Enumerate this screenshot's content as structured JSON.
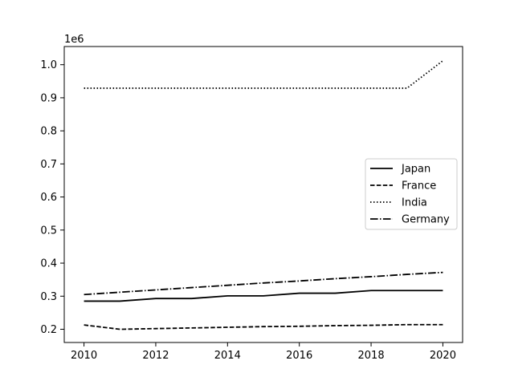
{
  "chart_data": {
    "type": "line",
    "title": "",
    "xlabel": "",
    "ylabel": "",
    "y_offset_label": "1e6",
    "x": [
      2010,
      2011,
      2012,
      2013,
      2014,
      2015,
      2016,
      2017,
      2018,
      2019,
      2020
    ],
    "xlim": [
      2009.45,
      2020.55
    ],
    "ylim": [
      160000,
      1055000
    ],
    "x_ticks": [
      2010,
      2012,
      2014,
      2016,
      2018,
      2020
    ],
    "x_tick_labels": [
      "2010",
      "2012",
      "2014",
      "2016",
      "2018",
      "2020"
    ],
    "y_ticks": [
      200000,
      300000,
      400000,
      500000,
      600000,
      700000,
      800000,
      900000,
      1000000
    ],
    "y_tick_labels": [
      "0.2",
      "0.3",
      "0.4",
      "0.5",
      "0.6",
      "0.7",
      "0.8",
      "0.9",
      "1.0"
    ],
    "grid": false,
    "legend_position": "center-right",
    "series": [
      {
        "name": "Japan",
        "style": "solid",
        "color": "#000000",
        "values": [
          285000,
          285000,
          293000,
          293000,
          301000,
          301000,
          309000,
          309000,
          317000,
          317000,
          317000
        ]
      },
      {
        "name": "France",
        "style": "dashed",
        "color": "#000000",
        "values": [
          213000,
          200000,
          202000,
          204000,
          206000,
          208000,
          209000,
          211000,
          212000,
          214000,
          214000
        ]
      },
      {
        "name": "India",
        "style": "dotted",
        "color": "#000000",
        "values": [
          929000,
          929000,
          929000,
          929000,
          929000,
          929000,
          929000,
          929000,
          929000,
          929000,
          1012000
        ]
      },
      {
        "name": "Germany",
        "style": "dashdot",
        "color": "#000000",
        "values": [
          305000,
          312000,
          319000,
          326000,
          333000,
          340000,
          346000,
          353000,
          359000,
          366000,
          372000
        ]
      }
    ]
  }
}
